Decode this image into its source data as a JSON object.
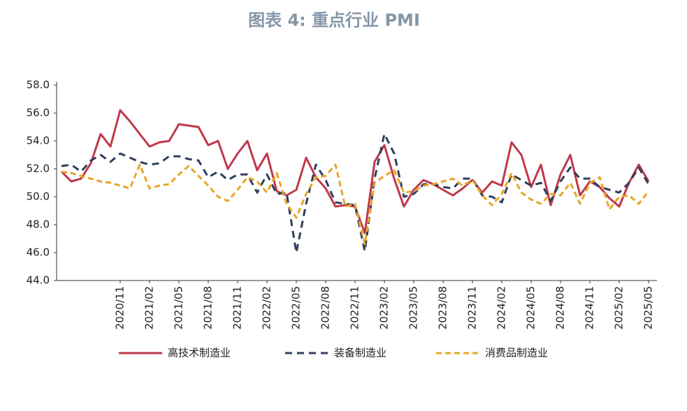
{
  "chart_data": {
    "type": "line",
    "title": "图表 4:    重点行业 PMI",
    "categories": [
      null,
      null,
      null,
      null,
      null,
      null,
      "2020/11",
      null,
      null,
      "2021/02",
      null,
      null,
      "2021/05",
      null,
      null,
      "2021/08",
      null,
      null,
      "2021/11",
      null,
      null,
      "2022/02",
      null,
      null,
      "2022/05",
      null,
      null,
      "2022/08",
      null,
      null,
      "2022/11",
      null,
      null,
      "2023/02",
      null,
      null,
      "2023/05",
      null,
      null,
      "2023/08",
      null,
      null,
      "2023/11",
      null,
      null,
      "2024/02",
      null,
      null,
      "2024/05",
      null,
      null,
      "2024/08",
      null,
      null,
      "2024/11",
      null,
      null,
      "2025/02",
      null,
      null,
      "2025/05"
    ],
    "series": [
      {
        "name": "高技术制造业",
        "color": "#c0384b",
        "dash": "none",
        "values": [
          51.8,
          51.1,
          51.3,
          52.4,
          54.5,
          53.6,
          56.2,
          55.4,
          54.5,
          53.6,
          53.9,
          54.0,
          55.2,
          55.1,
          55.0,
          53.7,
          54.0,
          52.0,
          53.1,
          54.0,
          51.9,
          53.1,
          50.4,
          50.1,
          50.5,
          52.8,
          51.4,
          50.6,
          49.3,
          49.4,
          49.3,
          47.4,
          52.5,
          53.7,
          51.3,
          49.3,
          50.5,
          51.2,
          50.9,
          50.5,
          50.1,
          50.6,
          51.2,
          50.3,
          51.1,
          50.8,
          53.9,
          53.0,
          50.7,
          52.3,
          49.4,
          51.6,
          53.0,
          50.1,
          51.1,
          50.7,
          49.9,
          49.3,
          51.0,
          52.3,
          51.1
        ]
      },
      {
        "name": "装备制造业",
        "color": "#2f3f5c",
        "dash": "10 7",
        "values": [
          52.2,
          52.3,
          51.8,
          52.6,
          53.0,
          52.5,
          53.1,
          52.8,
          52.5,
          52.3,
          52.4,
          52.9,
          52.9,
          52.7,
          52.6,
          51.4,
          51.8,
          51.2,
          51.6,
          51.6,
          50.3,
          51.6,
          50.2,
          50.3,
          46.0,
          49.5,
          52.3,
          51.2,
          49.6,
          49.5,
          49.4,
          46.1,
          51.3,
          54.5,
          53.1,
          50.0,
          50.2,
          50.9,
          50.9,
          50.7,
          50.6,
          51.3,
          51.3,
          50.1,
          50.0,
          49.6,
          51.6,
          51.2,
          50.8,
          51.0,
          49.7,
          51.1,
          52.1,
          51.3,
          51.3,
          50.7,
          50.5,
          50.3,
          51.0,
          52.1,
          50.9
        ]
      },
      {
        "name": "消费品制造业",
        "color": "#e9a525",
        "dash": "8 5",
        "values": [
          51.8,
          51.7,
          51.5,
          51.3,
          51.1,
          51.0,
          50.8,
          50.6,
          52.3,
          50.6,
          50.8,
          50.9,
          51.6,
          52.2,
          51.5,
          50.8,
          50.0,
          49.7,
          50.5,
          51.4,
          51.1,
          50.3,
          51.7,
          49.5,
          48.5,
          50.2,
          51.4,
          51.5,
          52.3,
          49.3,
          49.5,
          46.6,
          51.0,
          51.5,
          51.9,
          50.3,
          50.4,
          50.8,
          50.9,
          51.1,
          51.3,
          50.8,
          51.2,
          50.1,
          49.4,
          50.2,
          51.7,
          50.3,
          49.8,
          49.5,
          50.2,
          50.1,
          51.0,
          49.5,
          51.0,
          51.4,
          49.1,
          50.0,
          50.1,
          49.5,
          50.4
        ]
      }
    ],
    "ylim": [
      44,
      58
    ],
    "yticks": [
      {
        "value": 44,
        "label": "44.0"
      },
      {
        "value": 46,
        "label": "46.0"
      },
      {
        "value": 48,
        "label": "48.0"
      },
      {
        "value": 50,
        "label": "50.0"
      },
      {
        "value": 52,
        "label": "52.0"
      },
      {
        "value": 54,
        "label": "54.0"
      },
      {
        "value": 56,
        "label": "56.0"
      },
      {
        "value": 58,
        "label": "58.0"
      }
    ],
    "grid": false
  }
}
